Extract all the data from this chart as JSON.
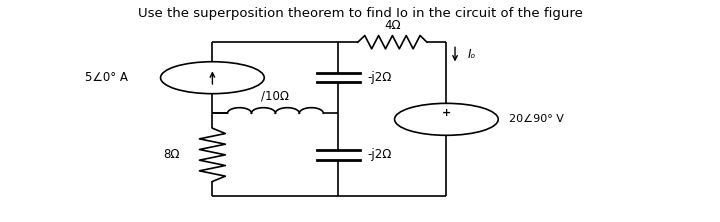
{
  "title": "Use the superposition theorem to find Io in the circuit of the figure",
  "title_fontsize": 9.5,
  "bg_color": "#ffffff",
  "lw": 1.2,
  "color": "#000000",
  "xl": 0.295,
  "xm": 0.47,
  "xr": 0.62,
  "yt": 0.81,
  "ym": 0.49,
  "yb": 0.115,
  "cs_r": 0.072,
  "vs_r": 0.072,
  "labels": {
    "top_resistor": "4Ω",
    "top_cap": "-j2Ω",
    "bot_cap": "-j2Ω",
    "mid_resistor": "/10Ω",
    "left_resistor": "8Ω",
    "current_source": "5∠0° A",
    "voltage_source": "20∠90° V",
    "io_label": "Iₒ"
  }
}
